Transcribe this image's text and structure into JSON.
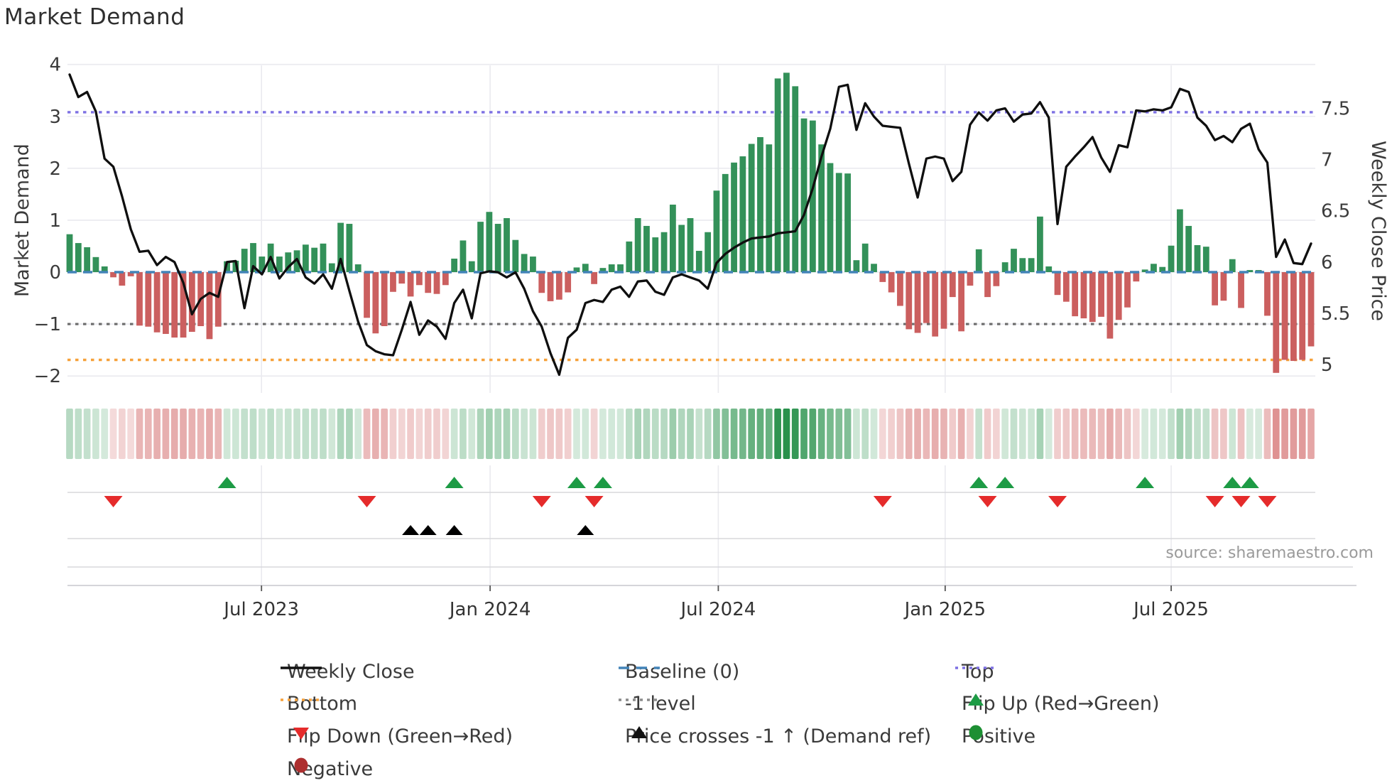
{
  "title": "Market Demand",
  "source": "source: sharemaestro.com",
  "axes": {
    "left_label": "Market Demand",
    "right_label": "Weekly Close Price",
    "left_ticks": [
      {
        "label": "4",
        "value": 4
      },
      {
        "label": "3",
        "value": 3
      },
      {
        "label": "2",
        "value": 2
      },
      {
        "label": "1",
        "value": 1
      },
      {
        "label": "0",
        "value": 0
      },
      {
        "label": "−1",
        "value": -1
      },
      {
        "label": "−2",
        "value": -2
      }
    ],
    "right_ticks": [
      {
        "label": "7.5",
        "value": 7.5
      },
      {
        "label": "7",
        "value": 7
      },
      {
        "label": "6.5",
        "value": 6.5
      },
      {
        "label": "6",
        "value": 6
      },
      {
        "label": "5.5",
        "value": 5.5
      },
      {
        "label": "5",
        "value": 5
      }
    ],
    "x_ticks": [
      {
        "label": "Jul 2023",
        "week": 21.95
      },
      {
        "label": "Jan 2024",
        "week": 48.1
      },
      {
        "label": "Jul 2024",
        "week": 74.2
      },
      {
        "label": "Jan 2025",
        "week": 100.15
      },
      {
        "label": "Jul 2025",
        "week": 126.0
      }
    ]
  },
  "chart_data": {
    "type": "bar+line",
    "title": "Market Demand",
    "start_date": "2023-01-27",
    "frequency": "weekly",
    "ylabel_left": "Market Demand",
    "ylabel_right": "Weekly Close Price",
    "left_range": [
      -2.33,
      3.98
    ],
    "right_range": [
      4.85,
      7.92
    ],
    "grid": true,
    "reference_lines": {
      "top": 3.08,
      "baseline": 0,
      "minus_one_level": -1,
      "bottom": -1.69
    },
    "demand": [
      0.73,
      0.56,
      0.48,
      0.29,
      0.11,
      -0.1,
      -0.26,
      -0.08,
      -1.03,
      -1.05,
      -1.16,
      -1.19,
      -1.26,
      -1.26,
      -1.15,
      -1.04,
      -1.29,
      -1.05,
      0.21,
      0.22,
      0.45,
      0.56,
      0.3,
      0.55,
      0.3,
      0.38,
      0.42,
      0.53,
      0.47,
      0.55,
      0.17,
      0.95,
      0.93,
      0.15,
      -0.88,
      -1.18,
      -1.04,
      -0.38,
      -0.22,
      -0.47,
      -0.25,
      -0.4,
      -0.42,
      -0.25,
      0.26,
      0.61,
      0.21,
      0.97,
      1.16,
      0.93,
      1.04,
      0.62,
      0.35,
      0.3,
      -0.4,
      -0.56,
      -0.53,
      -0.39,
      0.09,
      0.16,
      -0.23,
      0.08,
      0.15,
      0.15,
      0.59,
      1.04,
      0.89,
      0.67,
      0.77,
      1.3,
      0.91,
      1.04,
      0.41,
      0.77,
      1.57,
      1.89,
      2.11,
      2.23,
      2.47,
      2.6,
      2.46,
      3.73,
      3.84,
      3.58,
      2.96,
      2.92,
      2.46,
      2.1,
      1.91,
      1.9,
      0.23,
      0.55,
      0.16,
      -0.19,
      -0.39,
      -0.65,
      -1.1,
      -1.17,
      -0.98,
      -1.24,
      -1.09,
      -0.48,
      -1.14,
      -0.26,
      0.44,
      -0.48,
      -0.27,
      0.19,
      0.45,
      0.27,
      0.27,
      1.07,
      0.11,
      -0.44,
      -0.57,
      -0.85,
      -0.89,
      -0.96,
      -0.86,
      -1.28,
      -0.92,
      -0.68,
      -0.18,
      0.05,
      0.16,
      0.1,
      0.51,
      1.21,
      0.89,
      0.52,
      0.49,
      -0.64,
      -0.55,
      0.25,
      -0.69,
      0.04,
      0.04,
      -0.84,
      -1.94,
      -1.69,
      -1.71,
      -1.69,
      -1.43
    ],
    "price": [
      7.83,
      7.61,
      7.66,
      7.47,
      7.01,
      6.93,
      6.64,
      6.32,
      6.1,
      6.11,
      5.97,
      6.05,
      6.0,
      5.8,
      5.49,
      5.64,
      5.7,
      5.66,
      6.0,
      6.01,
      5.55,
      5.96,
      5.88,
      6.05,
      5.84,
      5.95,
      6.03,
      5.85,
      5.79,
      5.88,
      5.74,
      6.03,
      5.72,
      5.42,
      5.19,
      5.13,
      5.1,
      5.09,
      5.34,
      5.61,
      5.29,
      5.43,
      5.37,
      5.25,
      5.6,
      5.73,
      5.45,
      5.89,
      5.91,
      5.9,
      5.85,
      5.9,
      5.74,
      5.52,
      5.37,
      5.11,
      4.9,
      5.26,
      5.34,
      5.6,
      5.63,
      5.61,
      5.73,
      5.76,
      5.66,
      5.81,
      5.82,
      5.71,
      5.68,
      5.85,
      5.88,
      5.85,
      5.82,
      5.74,
      5.99,
      6.08,
      6.14,
      6.19,
      6.23,
      6.24,
      6.25,
      6.28,
      6.29,
      6.3,
      6.46,
      6.72,
      7.03,
      7.3,
      7.71,
      7.73,
      7.29,
      7.55,
      7.42,
      7.33,
      7.32,
      7.31,
      6.96,
      6.63,
      7.01,
      7.03,
      7.01,
      6.79,
      6.88,
      7.34,
      7.46,
      7.38,
      7.48,
      7.5,
      7.37,
      7.44,
      7.45,
      7.56,
      7.41,
      6.37,
      6.93,
      7.03,
      7.12,
      7.22,
      7.02,
      6.88,
      7.14,
      7.12,
      7.48,
      7.47,
      7.49,
      7.48,
      7.51,
      7.69,
      7.66,
      7.41,
      7.33,
      7.19,
      7.23,
      7.17,
      7.3,
      7.35,
      7.1,
      6.97,
      6.05,
      6.22,
      5.99,
      5.98,
      6.18
    ],
    "flip_up_weeks": [
      18,
      44,
      58,
      61,
      104,
      107,
      123,
      133,
      135
    ],
    "flip_down_weeks": [
      5,
      34,
      54,
      60,
      93,
      105,
      113,
      131,
      134,
      137
    ],
    "price_cross_weeks": [
      39,
      41,
      44,
      59
    ]
  },
  "legend": {
    "items": [
      {
        "col": 0,
        "row": 0,
        "type": "line",
        "color": "#111111",
        "label": "Weekly Close",
        "name": "legend-weekly-close"
      },
      {
        "col": 1,
        "row": 0,
        "type": "dashed",
        "color": "#4384b8",
        "label": "Baseline (0)",
        "name": "legend-baseline"
      },
      {
        "col": 2,
        "row": 0,
        "type": "dotted",
        "color": "#7d70e3",
        "label": "Top",
        "name": "legend-top"
      },
      {
        "col": 0,
        "row": 1,
        "type": "dotted",
        "color": "#f6a13a",
        "label": "Bottom",
        "name": "legend-bottom"
      },
      {
        "col": 1,
        "row": 1,
        "type": "dotted",
        "color": "#8a8a8a",
        "label": "-1 level",
        "name": "legend-minus-one"
      },
      {
        "col": 2,
        "row": 1,
        "type": "tri-up",
        "color": "#1d9b45",
        "label": "Flip Up (Red→Green)",
        "name": "legend-flip-up"
      },
      {
        "col": 0,
        "row": 2,
        "type": "tri-down",
        "color": "#e52b2b",
        "label": "Flip Down (Green→Red)",
        "name": "legend-flip-down"
      },
      {
        "col": 1,
        "row": 2,
        "type": "tri-up",
        "color": "#111111",
        "label": "Price crosses -1 ↑ (Demand ref)",
        "name": "legend-price-cross"
      },
      {
        "col": 2,
        "row": 2,
        "type": "circle",
        "color": "#1d8f33",
        "label": "Positive",
        "name": "legend-positive"
      },
      {
        "col": 0,
        "row": 3,
        "type": "circle",
        "color": "#ad2f2f",
        "label": "Negative",
        "name": "legend-negative"
      }
    ]
  },
  "colors": {
    "bar_positive": "#339159",
    "bar_negative": "#cb5f5f",
    "price_line": "#0f0f0f",
    "baseline": "#4384b8",
    "top_line": "#7d70e3",
    "bottom_line": "#f6a13a",
    "minus_one_line": "#6b6b6b",
    "flip_up_marker": "#1d9b45",
    "flip_down_marker": "#e52b2b",
    "cross_marker": "#000000",
    "grid": "#eaeaef",
    "panel_line": "#d8d8dc",
    "axis_text": "#3b3b3b",
    "heat_green": [
      40,
      145,
      75
    ],
    "heat_red": [
      200,
      70,
      70
    ]
  }
}
